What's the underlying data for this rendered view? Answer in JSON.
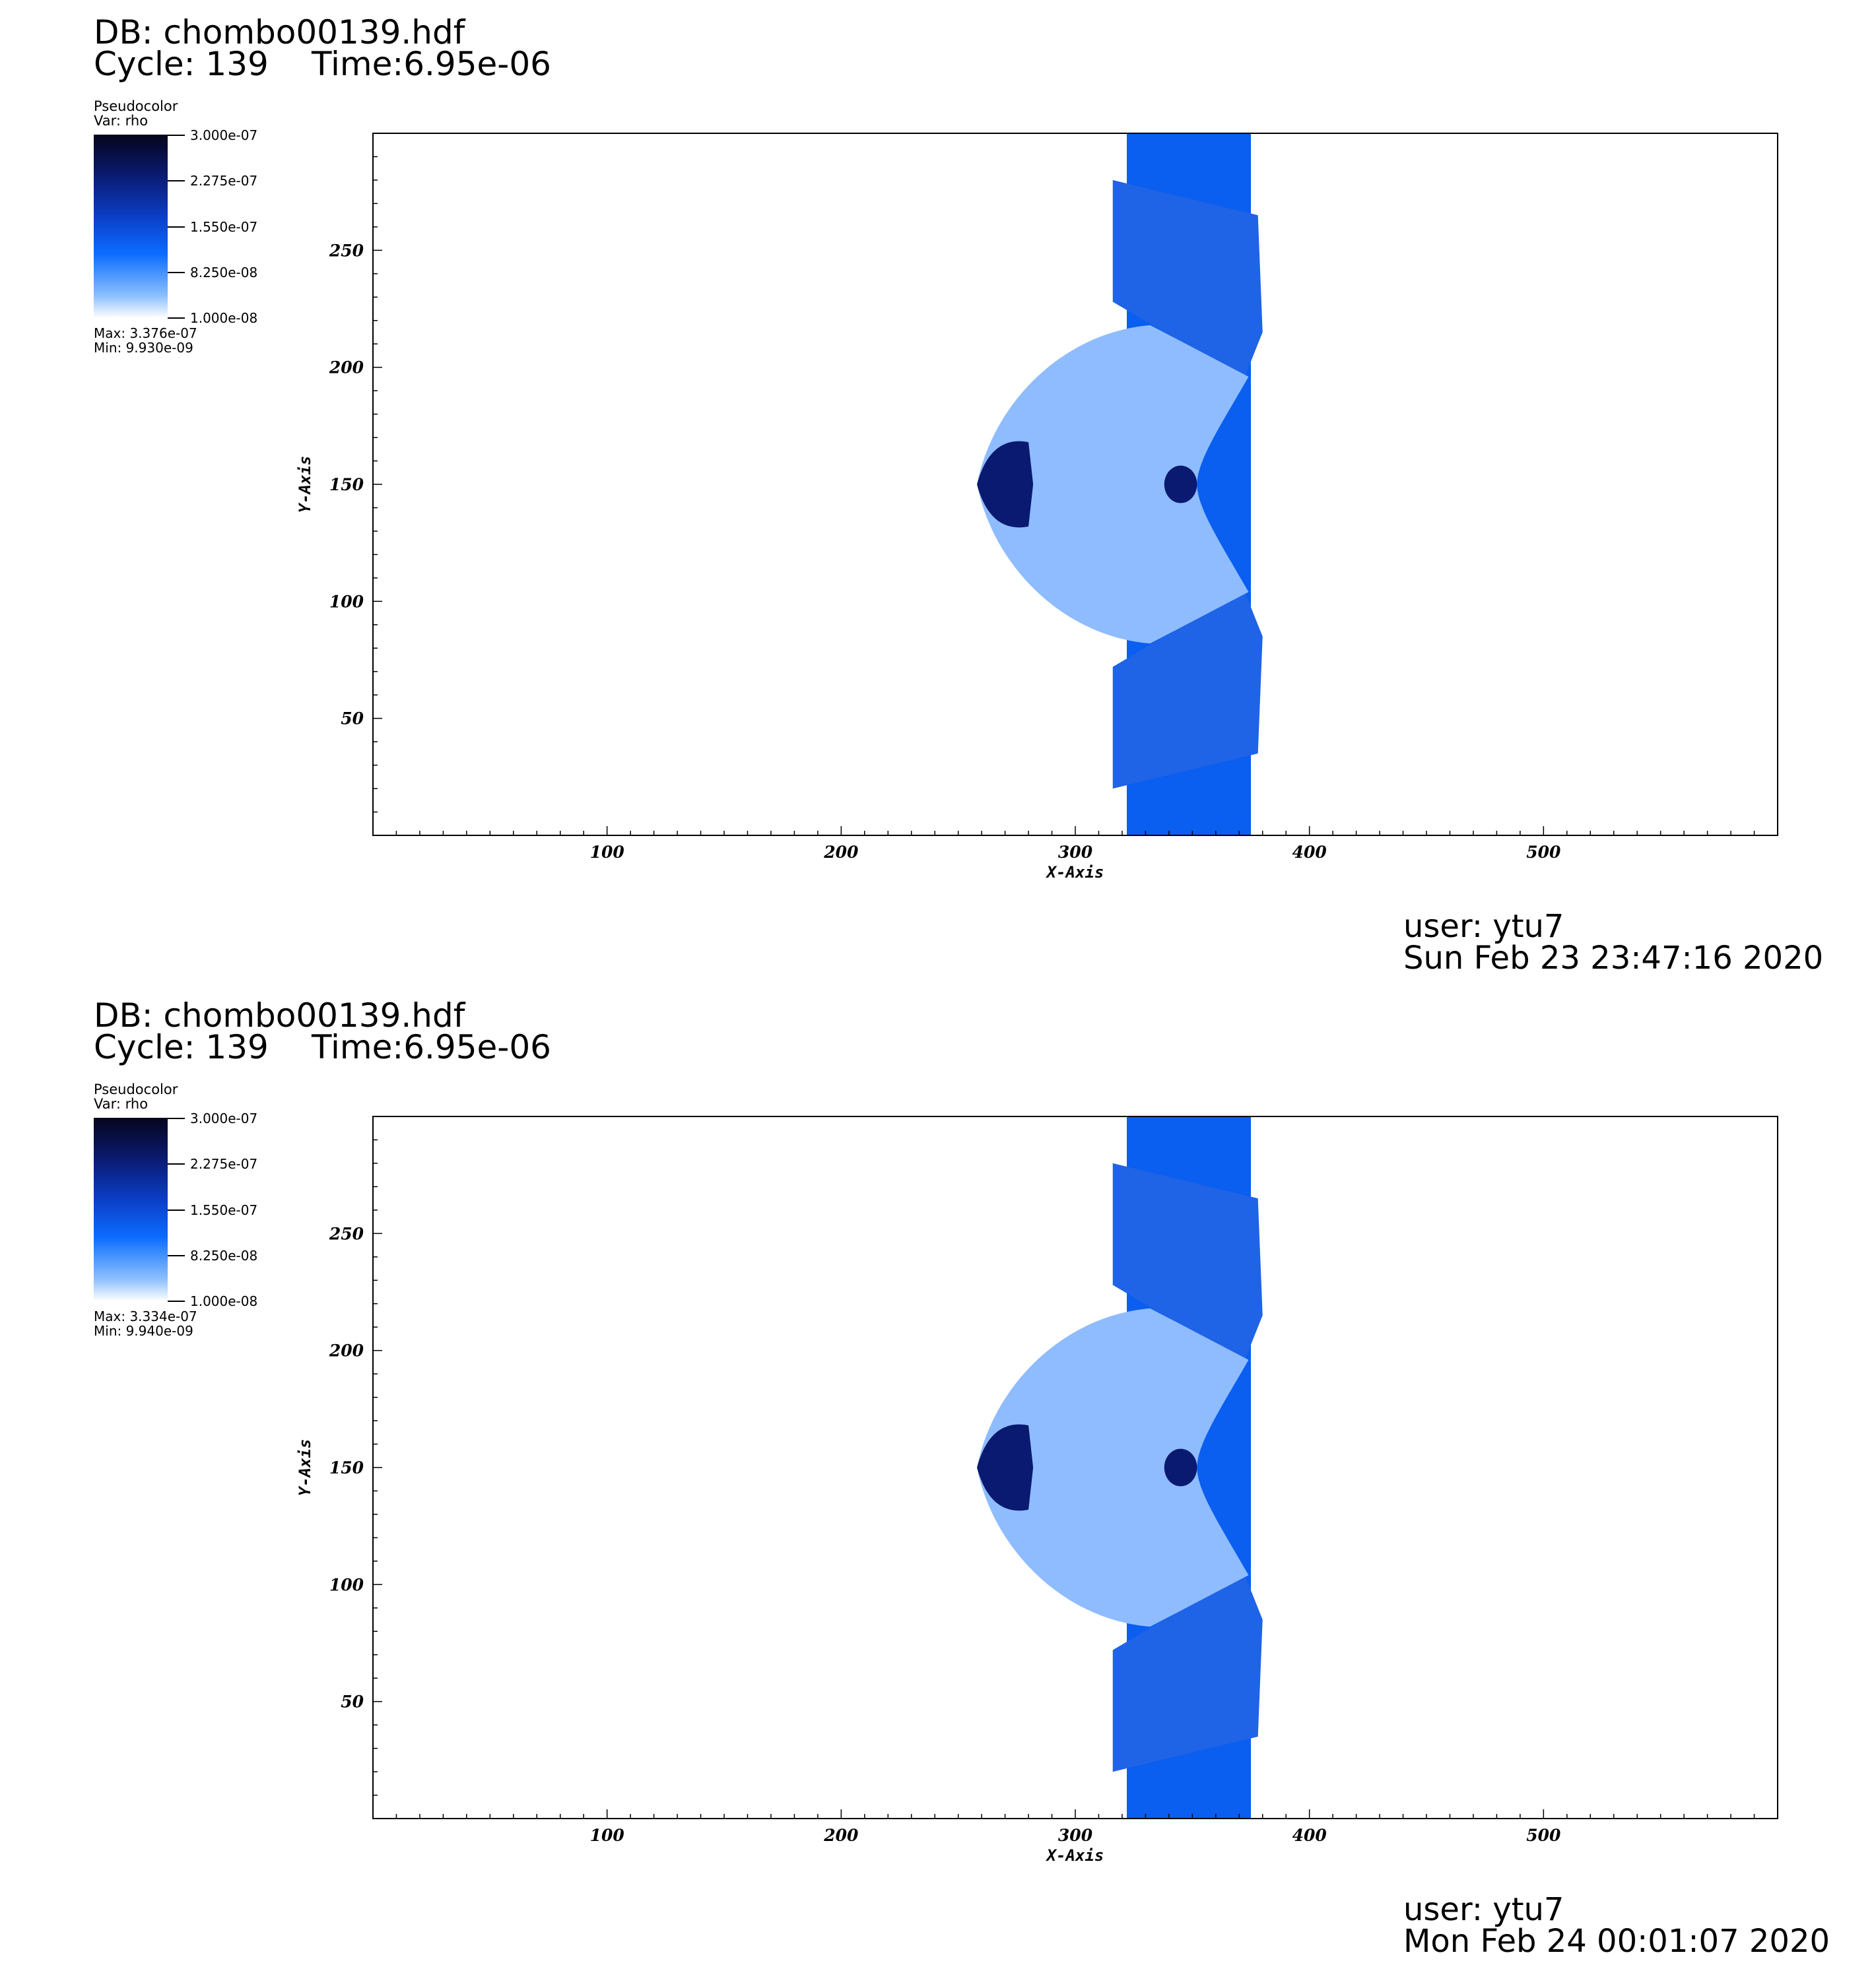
{
  "chart_data": [
    {
      "type": "heatmap",
      "header": {
        "db": "DB: chombo00139.hdf",
        "cycle": "Cycle: 139",
        "time": "Time:6.95e-06"
      },
      "legend": {
        "plot_type": "Pseudocolor",
        "var": "Var: rho",
        "ticks": [
          "3.000e-07",
          "2.275e-07",
          "1.550e-07",
          "8.250e-08",
          "1.000e-08"
        ],
        "max": "Max:  3.376e-07",
        "min": "Min:  9.930e-09",
        "colors": [
          "#05051c",
          "#0a1a70",
          "#0b3fc8",
          "#0b6cff",
          "#8cc0ff",
          "#ffffff"
        ]
      },
      "xlabel": "X-Axis",
      "ylabel": "Y-Axis",
      "xlim": [
        0,
        600
      ],
      "ylim": [
        0,
        300
      ],
      "xticks": [
        100,
        200,
        300,
        400,
        500
      ],
      "yticks": [
        50,
        100,
        150,
        200,
        250
      ],
      "grid": false,
      "field_color": "#0a5ef0",
      "footer": {
        "user": "user: ytu7",
        "date": "Sun Feb 23 23:47:16 2020"
      }
    },
    {
      "type": "heatmap",
      "header": {
        "db": "DB: chombo00139.hdf",
        "cycle": "Cycle: 139",
        "time": "Time:6.95e-06"
      },
      "legend": {
        "plot_type": "Pseudocolor",
        "var": "Var: rho",
        "ticks": [
          "3.000e-07",
          "2.275e-07",
          "1.550e-07",
          "8.250e-08",
          "1.000e-08"
        ],
        "max": "Max:  3.334e-07",
        "min": "Min:  9.940e-09",
        "colors": [
          "#05051c",
          "#0a1a70",
          "#0b3fc8",
          "#0b6cff",
          "#8cc0ff",
          "#ffffff"
        ]
      },
      "xlabel": "X-Axis",
      "ylabel": "Y-Axis",
      "xlim": [
        0,
        600
      ],
      "ylim": [
        0,
        300
      ],
      "xticks": [
        100,
        200,
        300,
        400,
        500
      ],
      "yticks": [
        50,
        100,
        150,
        200,
        250
      ],
      "grid": false,
      "field_color": "#0a5ef0",
      "footer": {
        "user": "user: ytu7",
        "date": "Mon Feb 24 00:01:07 2020"
      }
    }
  ]
}
